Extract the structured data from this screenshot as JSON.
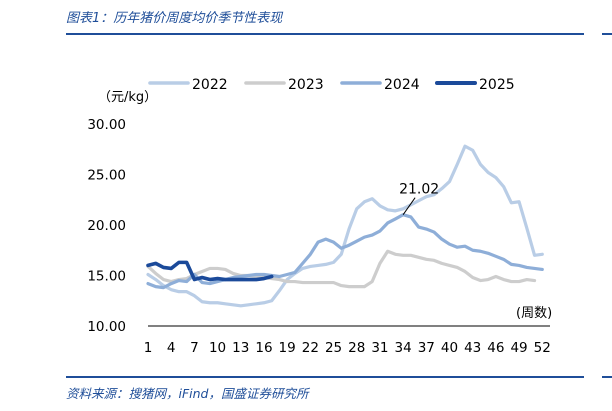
{
  "figure_title": "图表1：历年猪价周度均价季节性表现",
  "source": "资料来源：搜猪网，iFind，国盛证券研究所",
  "chart_data": {
    "type": "line",
    "title": "",
    "ylabel": "（元/kg）",
    "xlabel": "(周数)",
    "ylim": [
      10,
      30
    ],
    "yticks": [
      "10.00",
      "15.00",
      "20.00",
      "25.00",
      "30.00"
    ],
    "xlim": [
      1,
      53
    ],
    "xticks": [
      "1",
      "4",
      "7",
      "10",
      "13",
      "16",
      "19",
      "22",
      "25",
      "28",
      "31",
      "34",
      "37",
      "40",
      "43",
      "46",
      "49",
      "52"
    ],
    "legend_position": "top",
    "annotation": {
      "text": "21.02",
      "series": "2024",
      "x": 34,
      "y": 21.02
    },
    "series": [
      {
        "name": "2022",
        "color": "#b9cde6",
        "width": 3.2,
        "x": [
          1,
          2,
          3,
          4,
          5,
          6,
          7,
          8,
          9,
          10,
          11,
          12,
          13,
          14,
          15,
          16,
          17,
          18,
          19,
          20,
          21,
          22,
          23,
          24,
          25,
          26,
          27,
          28,
          29,
          30,
          31,
          32,
          33,
          34,
          35,
          36,
          37,
          38,
          39,
          40,
          41,
          42,
          43,
          44,
          45,
          46,
          47,
          48,
          49,
          50,
          51,
          52,
          53
        ],
        "values": [
          15.1,
          14.6,
          14.0,
          13.6,
          13.4,
          13.4,
          13.0,
          12.4,
          12.3,
          12.3,
          12.2,
          12.1,
          12.0,
          12.1,
          12.2,
          12.3,
          12.5,
          13.5,
          14.6,
          15.2,
          15.7,
          15.9,
          16.0,
          16.1,
          16.3,
          17.1,
          19.6,
          21.6,
          22.3,
          22.6,
          21.9,
          21.5,
          21.4,
          21.6,
          22.0,
          22.4,
          22.8,
          23.0,
          23.6,
          24.3,
          26.0,
          27.8,
          27.4,
          26.0,
          25.2,
          24.7,
          23.8,
          22.2,
          22.3,
          19.7,
          17.0,
          17.1,
          null
        ]
      },
      {
        "name": "2023",
        "color": "#cdcdcd",
        "width": 3.2,
        "x": [
          1,
          2,
          3,
          4,
          5,
          6,
          7,
          8,
          9,
          10,
          11,
          12,
          13,
          14,
          15,
          16,
          17,
          18,
          19,
          20,
          21,
          22,
          23,
          24,
          25,
          26,
          27,
          28,
          29,
          30,
          31,
          32,
          33,
          34,
          35,
          36,
          37,
          38,
          39,
          40,
          41,
          42,
          43,
          44,
          45,
          46,
          47,
          48,
          49,
          50,
          51,
          52,
          53
        ],
        "values": [
          15.9,
          15.2,
          14.6,
          14.4,
          14.6,
          14.7,
          15.1,
          15.4,
          15.7,
          15.7,
          15.6,
          15.2,
          15.0,
          15.0,
          14.9,
          14.8,
          14.7,
          14.6,
          14.4,
          14.4,
          14.3,
          14.3,
          14.3,
          14.3,
          14.3,
          14.0,
          13.9,
          13.9,
          13.9,
          14.4,
          16.2,
          17.4,
          17.1,
          17.0,
          17.0,
          16.8,
          16.6,
          16.5,
          16.2,
          16.0,
          15.8,
          15.4,
          14.8,
          14.5,
          14.6,
          14.9,
          14.6,
          14.4,
          14.4,
          14.6,
          14.5,
          null,
          null
        ]
      },
      {
        "name": "2024",
        "color": "#8eaed8",
        "width": 3.2,
        "x": [
          1,
          2,
          3,
          4,
          5,
          6,
          7,
          8,
          9,
          10,
          11,
          12,
          13,
          14,
          15,
          16,
          17,
          18,
          19,
          20,
          21,
          22,
          23,
          24,
          25,
          26,
          27,
          28,
          29,
          30,
          31,
          32,
          33,
          34,
          35,
          36,
          37,
          38,
          39,
          40,
          41,
          42,
          43,
          44,
          45,
          46,
          47,
          48,
          49,
          50,
          51,
          52,
          53
        ],
        "values": [
          14.2,
          13.9,
          13.8,
          14.2,
          14.5,
          14.4,
          15.1,
          14.3,
          14.2,
          14.4,
          14.6,
          14.8,
          14.9,
          15.0,
          15.1,
          15.1,
          15.0,
          14.9,
          15.1,
          15.3,
          16.2,
          17.1,
          18.3,
          18.6,
          18.3,
          17.7,
          18.0,
          18.4,
          18.8,
          19.0,
          19.4,
          20.2,
          20.6,
          21.02,
          20.8,
          19.8,
          19.6,
          19.3,
          18.6,
          18.1,
          17.8,
          17.9,
          17.5,
          17.4,
          17.2,
          16.9,
          16.6,
          16.1,
          16.0,
          15.8,
          15.7,
          15.6,
          null
        ]
      },
      {
        "name": "2025",
        "color": "#1b4a9a",
        "width": 3.6,
        "x": [
          1,
          2,
          3,
          4,
          5,
          6,
          7,
          8,
          9,
          10,
          11,
          12,
          13,
          14,
          15,
          16,
          17,
          18,
          19,
          20,
          21,
          22,
          23,
          24,
          25,
          26,
          27,
          28,
          29,
          30,
          31,
          32,
          33,
          34,
          35,
          36,
          37,
          38,
          39,
          40,
          41,
          42,
          43,
          44,
          45,
          46,
          47,
          48,
          49,
          50,
          51,
          52,
          53
        ],
        "values": [
          16.0,
          16.2,
          15.8,
          15.7,
          16.3,
          16.3,
          14.6,
          14.8,
          14.6,
          14.7,
          14.6,
          14.6,
          14.6,
          14.6,
          14.6,
          14.7,
          14.9,
          null,
          null,
          null,
          null,
          null,
          null,
          null,
          null,
          null,
          null,
          null,
          null,
          null,
          null,
          null,
          null,
          null,
          null,
          null,
          null,
          null,
          null,
          null,
          null,
          null,
          null,
          null,
          null,
          null,
          null,
          null,
          null,
          null,
          null,
          null,
          null
        ]
      }
    ]
  }
}
